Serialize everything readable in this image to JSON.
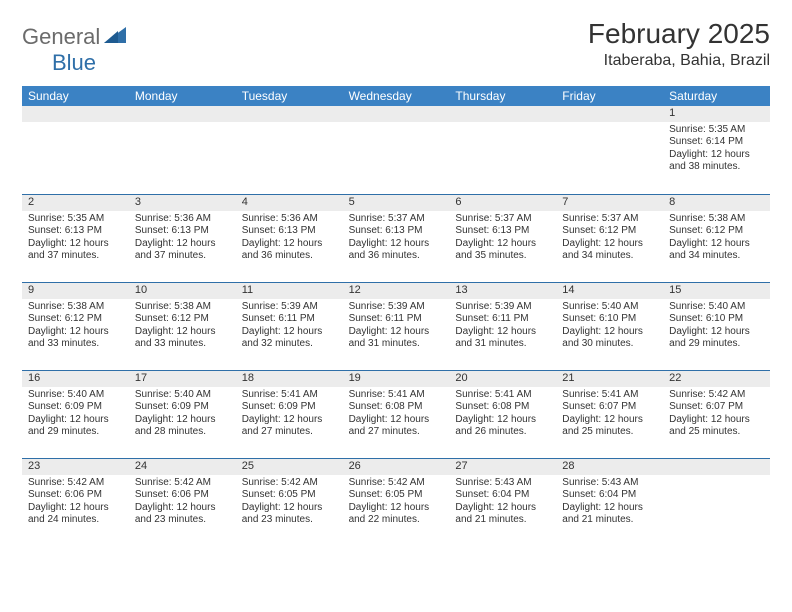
{
  "brand": {
    "part1": "General",
    "part2": "Blue"
  },
  "title": "February 2025",
  "location": "Itaberaba, Bahia, Brazil",
  "colors": {
    "header_bg": "#3b82c4",
    "header_text": "#ffffff",
    "rule": "#2f6fa8",
    "daynum_bg": "#ececec",
    "brand_gray": "#6b6b6b",
    "brand_blue": "#2f6fa8"
  },
  "weekdays": [
    "Sunday",
    "Monday",
    "Tuesday",
    "Wednesday",
    "Thursday",
    "Friday",
    "Saturday"
  ],
  "weeks": [
    [
      {
        "day": "",
        "sunrise": "",
        "sunset": "",
        "daylight": ""
      },
      {
        "day": "",
        "sunrise": "",
        "sunset": "",
        "daylight": ""
      },
      {
        "day": "",
        "sunrise": "",
        "sunset": "",
        "daylight": ""
      },
      {
        "day": "",
        "sunrise": "",
        "sunset": "",
        "daylight": ""
      },
      {
        "day": "",
        "sunrise": "",
        "sunset": "",
        "daylight": ""
      },
      {
        "day": "",
        "sunrise": "",
        "sunset": "",
        "daylight": ""
      },
      {
        "day": "1",
        "sunrise": "Sunrise: 5:35 AM",
        "sunset": "Sunset: 6:14 PM",
        "daylight": "Daylight: 12 hours and 38 minutes."
      }
    ],
    [
      {
        "day": "2",
        "sunrise": "Sunrise: 5:35 AM",
        "sunset": "Sunset: 6:13 PM",
        "daylight": "Daylight: 12 hours and 37 minutes."
      },
      {
        "day": "3",
        "sunrise": "Sunrise: 5:36 AM",
        "sunset": "Sunset: 6:13 PM",
        "daylight": "Daylight: 12 hours and 37 minutes."
      },
      {
        "day": "4",
        "sunrise": "Sunrise: 5:36 AM",
        "sunset": "Sunset: 6:13 PM",
        "daylight": "Daylight: 12 hours and 36 minutes."
      },
      {
        "day": "5",
        "sunrise": "Sunrise: 5:37 AM",
        "sunset": "Sunset: 6:13 PM",
        "daylight": "Daylight: 12 hours and 36 minutes."
      },
      {
        "day": "6",
        "sunrise": "Sunrise: 5:37 AM",
        "sunset": "Sunset: 6:13 PM",
        "daylight": "Daylight: 12 hours and 35 minutes."
      },
      {
        "day": "7",
        "sunrise": "Sunrise: 5:37 AM",
        "sunset": "Sunset: 6:12 PM",
        "daylight": "Daylight: 12 hours and 34 minutes."
      },
      {
        "day": "8",
        "sunrise": "Sunrise: 5:38 AM",
        "sunset": "Sunset: 6:12 PM",
        "daylight": "Daylight: 12 hours and 34 minutes."
      }
    ],
    [
      {
        "day": "9",
        "sunrise": "Sunrise: 5:38 AM",
        "sunset": "Sunset: 6:12 PM",
        "daylight": "Daylight: 12 hours and 33 minutes."
      },
      {
        "day": "10",
        "sunrise": "Sunrise: 5:38 AM",
        "sunset": "Sunset: 6:12 PM",
        "daylight": "Daylight: 12 hours and 33 minutes."
      },
      {
        "day": "11",
        "sunrise": "Sunrise: 5:39 AM",
        "sunset": "Sunset: 6:11 PM",
        "daylight": "Daylight: 12 hours and 32 minutes."
      },
      {
        "day": "12",
        "sunrise": "Sunrise: 5:39 AM",
        "sunset": "Sunset: 6:11 PM",
        "daylight": "Daylight: 12 hours and 31 minutes."
      },
      {
        "day": "13",
        "sunrise": "Sunrise: 5:39 AM",
        "sunset": "Sunset: 6:11 PM",
        "daylight": "Daylight: 12 hours and 31 minutes."
      },
      {
        "day": "14",
        "sunrise": "Sunrise: 5:40 AM",
        "sunset": "Sunset: 6:10 PM",
        "daylight": "Daylight: 12 hours and 30 minutes."
      },
      {
        "day": "15",
        "sunrise": "Sunrise: 5:40 AM",
        "sunset": "Sunset: 6:10 PM",
        "daylight": "Daylight: 12 hours and 29 minutes."
      }
    ],
    [
      {
        "day": "16",
        "sunrise": "Sunrise: 5:40 AM",
        "sunset": "Sunset: 6:09 PM",
        "daylight": "Daylight: 12 hours and 29 minutes."
      },
      {
        "day": "17",
        "sunrise": "Sunrise: 5:40 AM",
        "sunset": "Sunset: 6:09 PM",
        "daylight": "Daylight: 12 hours and 28 minutes."
      },
      {
        "day": "18",
        "sunrise": "Sunrise: 5:41 AM",
        "sunset": "Sunset: 6:09 PM",
        "daylight": "Daylight: 12 hours and 27 minutes."
      },
      {
        "day": "19",
        "sunrise": "Sunrise: 5:41 AM",
        "sunset": "Sunset: 6:08 PM",
        "daylight": "Daylight: 12 hours and 27 minutes."
      },
      {
        "day": "20",
        "sunrise": "Sunrise: 5:41 AM",
        "sunset": "Sunset: 6:08 PM",
        "daylight": "Daylight: 12 hours and 26 minutes."
      },
      {
        "day": "21",
        "sunrise": "Sunrise: 5:41 AM",
        "sunset": "Sunset: 6:07 PM",
        "daylight": "Daylight: 12 hours and 25 minutes."
      },
      {
        "day": "22",
        "sunrise": "Sunrise: 5:42 AM",
        "sunset": "Sunset: 6:07 PM",
        "daylight": "Daylight: 12 hours and 25 minutes."
      }
    ],
    [
      {
        "day": "23",
        "sunrise": "Sunrise: 5:42 AM",
        "sunset": "Sunset: 6:06 PM",
        "daylight": "Daylight: 12 hours and 24 minutes."
      },
      {
        "day": "24",
        "sunrise": "Sunrise: 5:42 AM",
        "sunset": "Sunset: 6:06 PM",
        "daylight": "Daylight: 12 hours and 23 minutes."
      },
      {
        "day": "25",
        "sunrise": "Sunrise: 5:42 AM",
        "sunset": "Sunset: 6:05 PM",
        "daylight": "Daylight: 12 hours and 23 minutes."
      },
      {
        "day": "26",
        "sunrise": "Sunrise: 5:42 AM",
        "sunset": "Sunset: 6:05 PM",
        "daylight": "Daylight: 12 hours and 22 minutes."
      },
      {
        "day": "27",
        "sunrise": "Sunrise: 5:43 AM",
        "sunset": "Sunset: 6:04 PM",
        "daylight": "Daylight: 12 hours and 21 minutes."
      },
      {
        "day": "28",
        "sunrise": "Sunrise: 5:43 AM",
        "sunset": "Sunset: 6:04 PM",
        "daylight": "Daylight: 12 hours and 21 minutes."
      },
      {
        "day": "",
        "sunrise": "",
        "sunset": "",
        "daylight": ""
      }
    ]
  ]
}
